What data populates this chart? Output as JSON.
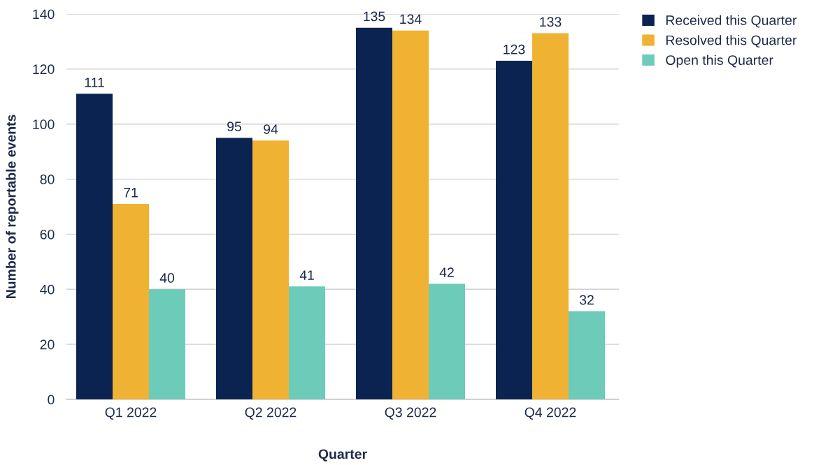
{
  "chart_data": {
    "type": "bar",
    "xlabel": "Quarter",
    "ylabel": "Number of reportable events",
    "categories": [
      "Q1 2022",
      "Q2 2022",
      "Q3 2022",
      "Q4 2022"
    ],
    "series": [
      {
        "name": "Received this Quarter",
        "color": "#0b2350",
        "values": [
          111,
          95,
          135,
          123
        ]
      },
      {
        "name": "Resolved this Quarter",
        "color": "#f0b232",
        "values": [
          71,
          94,
          134,
          133
        ]
      },
      {
        "name": "Open this Quarter",
        "color": "#6ccbb9",
        "values": [
          40,
          41,
          42,
          32
        ]
      }
    ],
    "ylim": [
      0,
      140
    ],
    "yticks": [
      0,
      20,
      40,
      60,
      80,
      100,
      120,
      140
    ],
    "grid": "y",
    "legend": "top right",
    "data_labels": true
  }
}
